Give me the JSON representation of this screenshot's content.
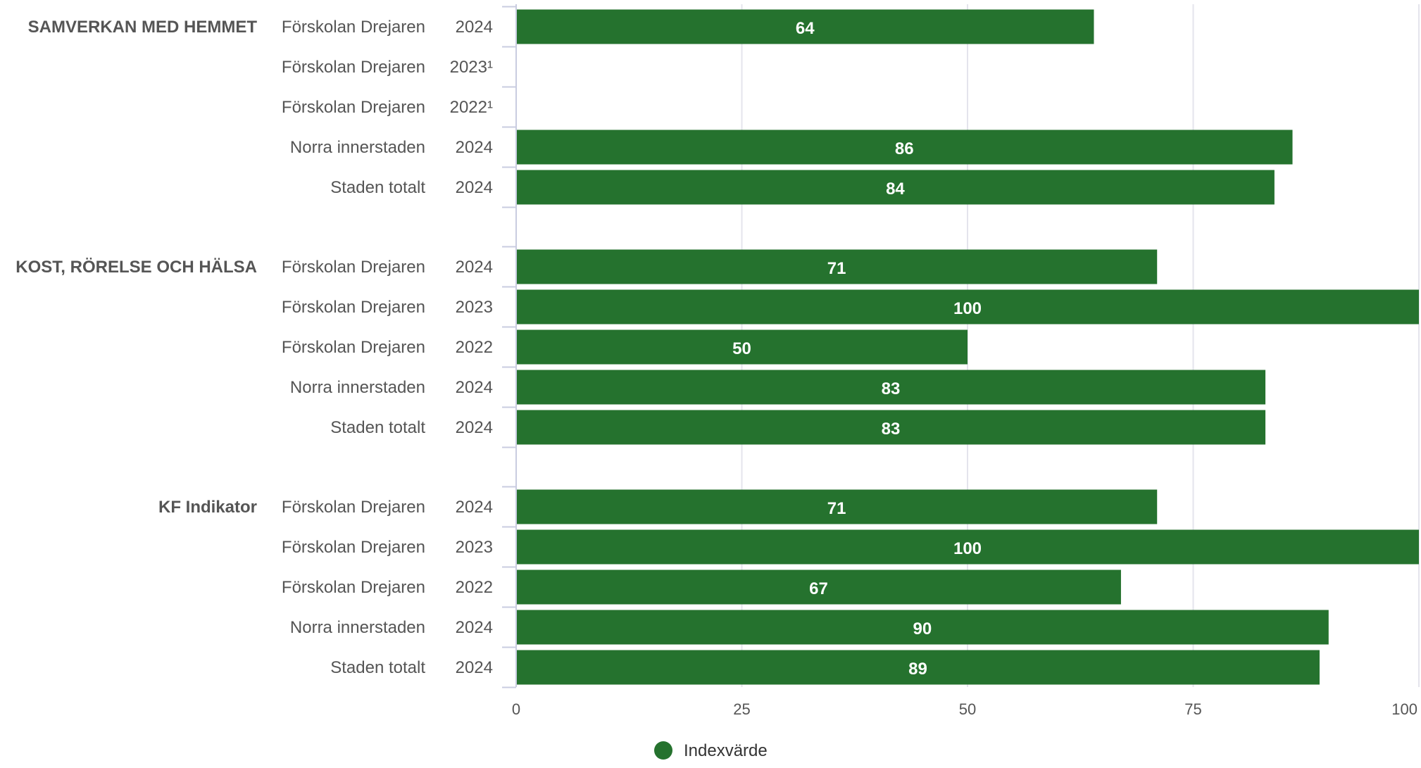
{
  "chart_data": {
    "type": "bar",
    "orientation": "horizontal",
    "xlim": [
      0,
      100
    ],
    "x_ticks": [
      "0",
      "25",
      "50",
      "75",
      "100"
    ],
    "grid": true,
    "legend_position": "bottom",
    "colors": {
      "bar": "#25722e",
      "bar_label": "#ffffff",
      "grid": "#e4e4ec",
      "axis": "#c9cce0",
      "text": "#555555",
      "group_text": "#555555"
    },
    "series": [
      {
        "name": "Indexvärde"
      }
    ],
    "groups": [
      {
        "label": "SAMVERKAN MED HEMMET",
        "rows": [
          {
            "unit": "Förskolan Drejaren",
            "year": "2024",
            "value": 64,
            "value_label": "64"
          },
          {
            "unit": "Förskolan Drejaren",
            "year": "2023¹",
            "value": null,
            "value_label": ""
          },
          {
            "unit": "Förskolan Drejaren",
            "year": "2022¹",
            "value": null,
            "value_label": ""
          },
          {
            "unit": "Norra innerstaden",
            "year": "2024",
            "value": 86,
            "value_label": "86"
          },
          {
            "unit": "Staden totalt",
            "year": "2024",
            "value": 84,
            "value_label": "84"
          }
        ]
      },
      {
        "label": "KOST, RÖRELSE OCH HÄLSA",
        "rows": [
          {
            "unit": "Förskolan Drejaren",
            "year": "2024",
            "value": 71,
            "value_label": "71"
          },
          {
            "unit": "Förskolan Drejaren",
            "year": "2023",
            "value": 100,
            "value_label": "100"
          },
          {
            "unit": "Förskolan Drejaren",
            "year": "2022",
            "value": 50,
            "value_label": "50"
          },
          {
            "unit": "Norra innerstaden",
            "year": "2024",
            "value": 83,
            "value_label": "83"
          },
          {
            "unit": "Staden totalt",
            "year": "2024",
            "value": 83,
            "value_label": "83"
          }
        ]
      },
      {
        "label": "KF Indikator",
        "rows": [
          {
            "unit": "Förskolan Drejaren",
            "year": "2024",
            "value": 71,
            "value_label": "71"
          },
          {
            "unit": "Förskolan Drejaren",
            "year": "2023",
            "value": 100,
            "value_label": "100"
          },
          {
            "unit": "Förskolan Drejaren",
            "year": "2022",
            "value": 67,
            "value_label": "67"
          },
          {
            "unit": "Norra innerstaden",
            "year": "2024",
            "value": 90,
            "value_label": "90"
          },
          {
            "unit": "Staden totalt",
            "year": "2024",
            "value": 89,
            "value_label": "89"
          }
        ]
      }
    ]
  }
}
